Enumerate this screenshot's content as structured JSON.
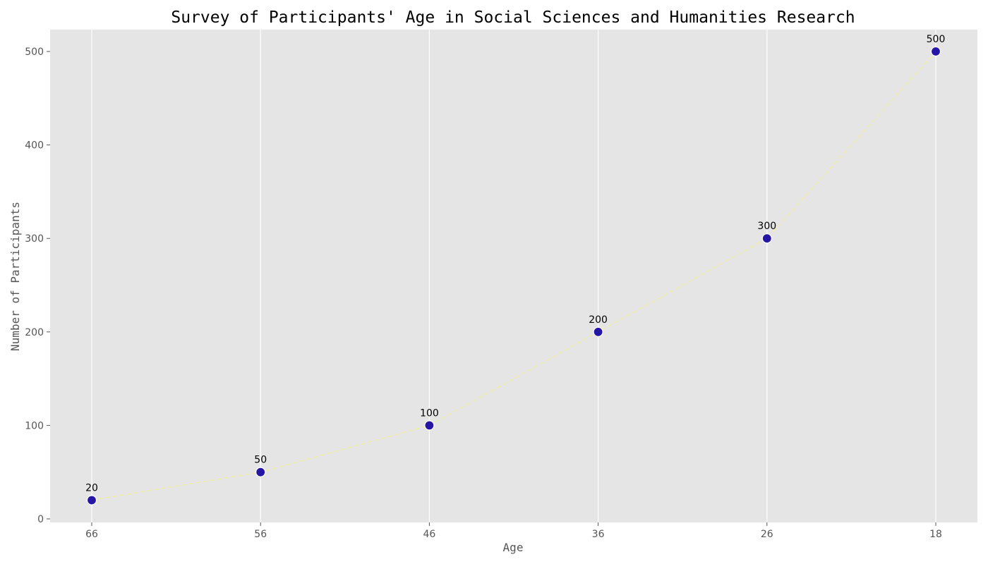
{
  "chart_data": {
    "type": "line",
    "title": "Survey of Participants' Age in Social Sciences and Humanities Research",
    "xlabel": "Age",
    "ylabel": "Number of Participants",
    "categories": [
      "66",
      "56",
      "46",
      "36",
      "26",
      "18"
    ],
    "series": [
      {
        "values": [
          20,
          50,
          100,
          200,
          300,
          500
        ]
      }
    ],
    "ylim": [
      0,
      520
    ],
    "yticks": [
      0,
      100,
      200,
      300,
      400,
      500
    ],
    "grid": "vertical",
    "line_style": "dashed",
    "colors": {
      "plot_background": "#e5e5e5",
      "line": "#eeeeaa",
      "marker_fill": "#2516a6",
      "marker_edge": "#ffffff",
      "grid": "#ffffff"
    }
  }
}
